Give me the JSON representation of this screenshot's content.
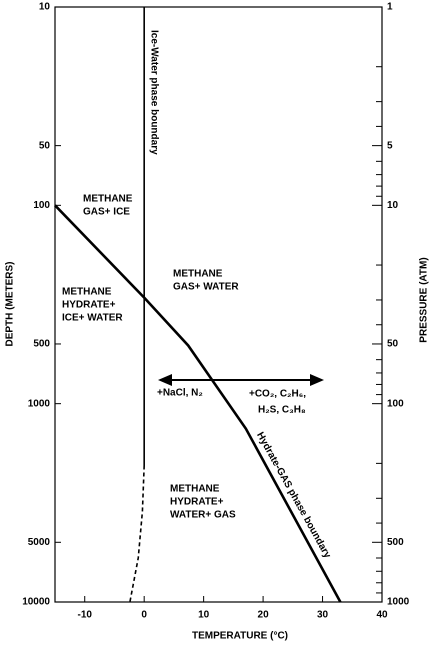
{
  "chart_data": {
    "type": "line",
    "x_label": "TEMPERATURE  (°C)",
    "y_label": "DEPTH  (METERS)",
    "y2_label": "PRESSURE  (ATM)",
    "xlim": [
      -15,
      40
    ],
    "xticks": [
      -10,
      0,
      10,
      20,
      30,
      40
    ],
    "ylim": [
      10,
      10000
    ],
    "yticks": [
      10,
      50,
      100,
      500,
      1000,
      5000,
      10000
    ],
    "y_log": true,
    "y_inverted": true,
    "y2lim": [
      1,
      1000
    ],
    "y2ticks": [
      1,
      5,
      10,
      50,
      100,
      500,
      1000
    ],
    "y2_minor_ticks": [
      2,
      3,
      4,
      6,
      7,
      8,
      9,
      20,
      30,
      40,
      60,
      70,
      80,
      90,
      200,
      300,
      400,
      600,
      700,
      800,
      900
    ],
    "series": [
      {
        "name": "Hydrate-GAS  phase  boundary",
        "color": "#000000",
        "style": "solid",
        "x": [
          -15,
          0,
          7.4,
          17.1,
          33
        ],
        "values": [
          100,
          292,
          509,
          1337,
          10000
        ]
      },
      {
        "name": "Ice-Water  phase  boundary",
        "color": "#000000",
        "style": "solid",
        "x": [
          0,
          0
        ],
        "values": [
          10,
          2050
        ]
      },
      {
        "name": "Ice-Water  phase  boundary",
        "color": "#000000",
        "style": "dashed",
        "x": [
          0,
          -0.3,
          -1,
          -2.4
        ],
        "values": [
          2050,
          3500,
          6000,
          10000
        ]
      }
    ],
    "regions": [
      {
        "lines": [
          "METHANE",
          "GAS+ ICE"
        ]
      },
      {
        "lines": [
          "METHANE",
          "GAS+ WATER"
        ]
      },
      {
        "lines": [
          "METHANE",
          "HYDRATE+",
          "ICE+ WATER"
        ]
      },
      {
        "lines": [
          "METHANE",
          "HYDRATE+",
          "WATER+ GAS"
        ]
      }
    ],
    "annotations": [
      "+NaCl,  N₂",
      "+CO₂,   C₂H₆,",
      "H₂S,  C₃H₈"
    ]
  }
}
